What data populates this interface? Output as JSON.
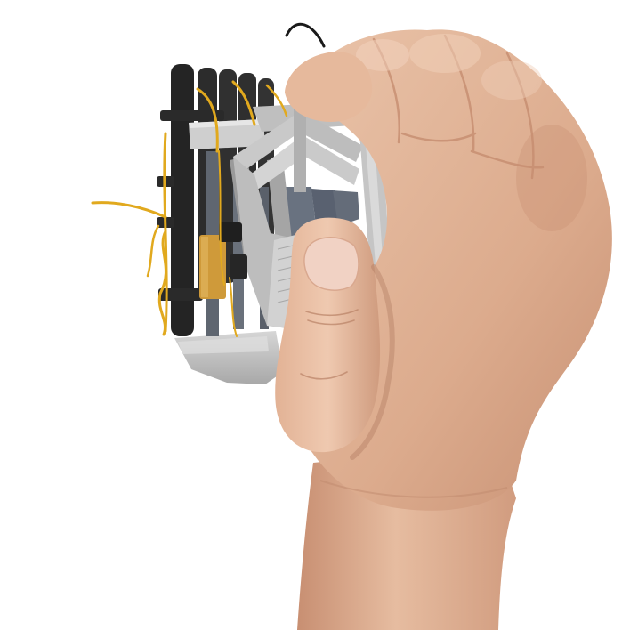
{
  "scene": {
    "background": "#ffffff",
    "subject": "hand-gripping-3d-printed-mechanism",
    "colors": {
      "skin_light": "#e9c2a6",
      "skin_mid": "#d9a788",
      "skin_shadow": "#b98266",
      "skin_deep": "#9c6a52",
      "nail": "#f1d2c4",
      "plastic_light": "#d3d3d3",
      "plastic_mid": "#b3b3b3",
      "plastic_dark": "#8b8b8b",
      "rod_black": "#242424",
      "rod_slate": "#5f6670",
      "string_yellow": "#e1a91e",
      "block_tan": "#cf9a3a",
      "wire_black": "#1a1a1a"
    }
  }
}
